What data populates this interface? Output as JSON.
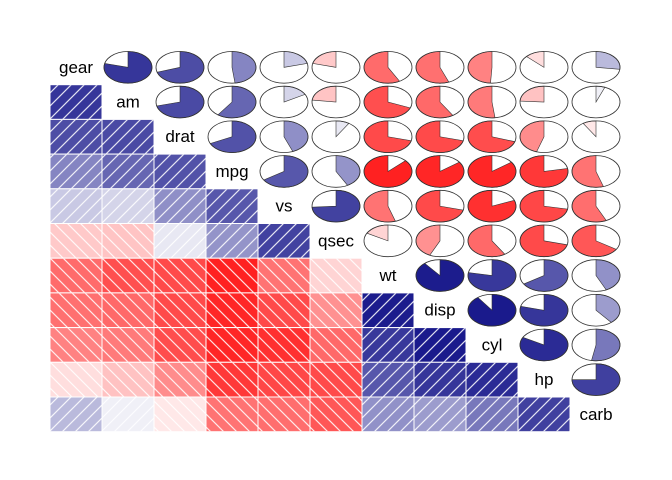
{
  "chart_data": {
    "type": "heatmap",
    "title": "",
    "variables": [
      "gear",
      "am",
      "drat",
      "mpg",
      "vs",
      "qsec",
      "wt",
      "disp",
      "cyl",
      "hp",
      "carb"
    ],
    "lower_panel": "shade",
    "upper_panel": "pie",
    "value_range": [
      -1,
      1
    ],
    "colors": {
      "negative": "#ff0000",
      "neutral": "#ffffff",
      "positive": "#00007f",
      "pie_outline": "#333333",
      "cell_border": "#ffffff",
      "hatch": "#ffffff"
    },
    "correlations": [
      [
        1.0,
        0.79,
        0.7,
        0.48,
        0.21,
        -0.21,
        -0.58,
        -0.56,
        -0.49,
        -0.13,
        0.27
      ],
      [
        0.79,
        1.0,
        0.71,
        0.6,
        0.17,
        -0.23,
        -0.69,
        -0.59,
        -0.52,
        -0.24,
        0.06
      ],
      [
        0.7,
        0.71,
        1.0,
        0.68,
        0.44,
        0.09,
        -0.71,
        -0.71,
        -0.7,
        -0.45,
        -0.09
      ],
      [
        0.48,
        0.6,
        0.68,
        1.0,
        0.66,
        0.42,
        -0.87,
        -0.85,
        -0.85,
        -0.78,
        -0.55
      ],
      [
        0.21,
        0.17,
        0.44,
        0.66,
        1.0,
        0.74,
        -0.55,
        -0.71,
        -0.81,
        -0.72,
        -0.57
      ],
      [
        -0.21,
        -0.23,
        0.09,
        0.42,
        0.74,
        1.0,
        -0.17,
        -0.43,
        -0.59,
        -0.71,
        -0.66
      ],
      [
        -0.58,
        -0.69,
        -0.71,
        -0.87,
        -0.55,
        -0.17,
        1.0,
        0.89,
        0.78,
        0.66,
        0.43
      ],
      [
        -0.56,
        -0.59,
        -0.71,
        -0.85,
        -0.71,
        -0.43,
        0.89,
        1.0,
        0.9,
        0.79,
        0.39
      ],
      [
        -0.49,
        -0.52,
        -0.7,
        -0.85,
        -0.81,
        -0.59,
        0.78,
        0.9,
        1.0,
        0.83,
        0.53
      ],
      [
        -0.13,
        -0.24,
        -0.45,
        -0.78,
        -0.72,
        -0.71,
        0.66,
        0.79,
        0.83,
        1.0,
        0.75
      ],
      [
        0.27,
        0.06,
        -0.09,
        -0.55,
        -0.57,
        -0.66,
        0.43,
        0.39,
        0.53,
        0.75,
        1.0
      ]
    ]
  }
}
